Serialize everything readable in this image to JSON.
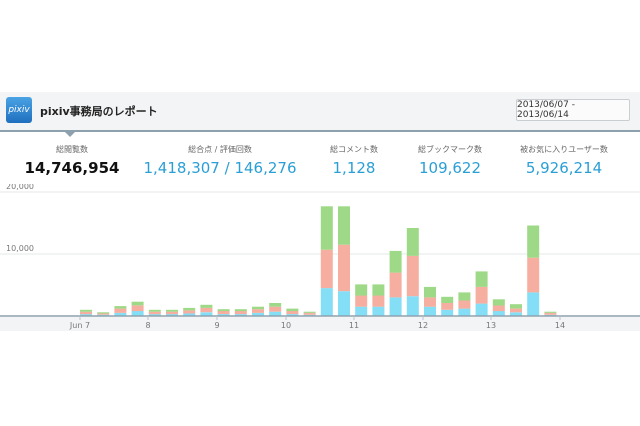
{
  "report": {
    "title": "pixiv事務局のレポート",
    "logo_text": "pixiv",
    "date_range": "2013/06/07 - 2013/06/14"
  },
  "stats": {
    "views": {
      "label": "総閲覧数",
      "value": "14,746,954"
    },
    "score": {
      "label": "総合点 / 評価回数",
      "value": "1,418,307",
      "separator": "/",
      "value2": "146,276"
    },
    "comments": {
      "label": "総コメント数",
      "value": "1,128"
    },
    "bookmarks": {
      "label": "総ブックマーク数",
      "value": "109,622"
    },
    "favorites": {
      "label": "被お気に入りユーザー数",
      "value": "5,926,214"
    }
  },
  "colors": {
    "accent": "#2a9fd6",
    "series_blue": "#84def6",
    "series_salmon": "#f5aea0",
    "series_green": "#9ed987"
  },
  "chart_data": {
    "type": "bar",
    "stacked": true,
    "ylim": [
      0,
      20000
    ],
    "yticks": [
      "20,000",
      "10,000"
    ],
    "ytick_values": [
      20000,
      10000
    ],
    "xticks": [
      "Jun 7",
      "8",
      "9",
      "10",
      "11",
      "12",
      "13",
      "14"
    ],
    "series": [
      {
        "values": [
          300,
          200,
          500,
          800,
          300,
          300,
          400,
          600,
          300,
          300,
          500,
          700,
          300,
          200,
          4500,
          4000,
          1500,
          1500,
          3000,
          3200,
          1500,
          1000,
          1200,
          2000,
          800,
          600,
          3800,
          200
        ]
      },
      {
        "values": [
          400,
          200,
          700,
          900,
          400,
          400,
          500,
          700,
          500,
          500,
          600,
          800,
          500,
          300,
          6200,
          7500,
          1800,
          1800,
          4000,
          6500,
          1500,
          1100,
          1300,
          2700,
          900,
          600,
          5600,
          300
        ]
      },
      {
        "values": [
          300,
          200,
          400,
          600,
          300,
          300,
          400,
          500,
          300,
          300,
          400,
          600,
          400,
          200,
          7000,
          6200,
          1800,
          1800,
          3500,
          4500,
          1700,
          1000,
          1300,
          2500,
          1000,
          700,
          5200,
          200
        ]
      }
    ]
  }
}
